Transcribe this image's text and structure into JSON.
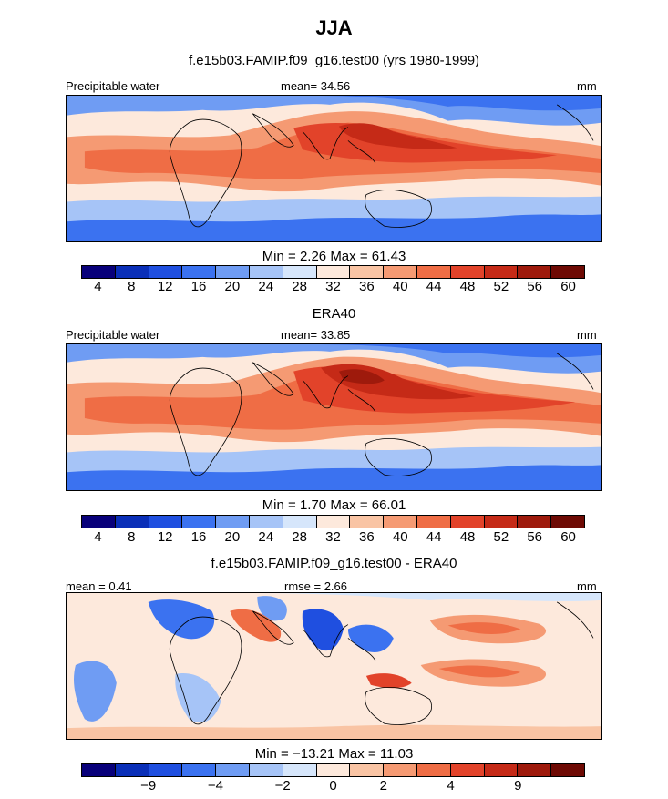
{
  "figure": {
    "title": "JJA"
  },
  "palette": [
    "#08007a",
    "#0a2fb8",
    "#1f4fe0",
    "#3b72f0",
    "#6f9cf3",
    "#a6c4f7",
    "#d6e6fb",
    "#fde9dc",
    "#f9c4a4",
    "#f59a73",
    "#ef6d45",
    "#e2432a",
    "#c52a17",
    "#9e1a0c",
    "#6e0a04"
  ],
  "panels": [
    {
      "subtitle": "f.e15b03.FAMIP.f09_g16.test00 (yrs 1980-1999)",
      "left_label": "Precipitable water",
      "center_label": "mean=   34.56",
      "right_label": "mm",
      "stats": "Min =     2.26  Max =    61.43",
      "cbar_ticks": [
        "4",
        "8",
        "12",
        "16",
        "20",
        "24",
        "28",
        "32",
        "36",
        "40",
        "44",
        "48",
        "52",
        "56",
        "60"
      ],
      "mean": 34.56,
      "min": 2.26,
      "max": 61.43
    },
    {
      "subtitle": "ERA40",
      "left_label": "Precipitable water",
      "center_label": "mean=   33.85",
      "right_label": "mm",
      "stats": "Min =     1.70  Max =    66.01",
      "cbar_ticks": [
        "4",
        "8",
        "12",
        "16",
        "20",
        "24",
        "28",
        "32",
        "36",
        "40",
        "44",
        "48",
        "52",
        "56",
        "60"
      ],
      "mean": 33.85,
      "min": 1.7,
      "max": 66.01
    },
    {
      "subtitle": "f.e15b03.FAMIP.f09_g16.test00 - ERA40",
      "left_label": "mean =    0.41",
      "center_label": "rmse =    2.66",
      "right_label": "mm",
      "stats": "Min = −13.21  Max =   11.03",
      "cbar_ticks": [
        "−9",
        "−4",
        "−2",
        "0",
        "2",
        "4",
        "9"
      ],
      "mean": 0.41,
      "rmse": 2.66,
      "min": -13.21,
      "max": 11.03
    }
  ]
}
